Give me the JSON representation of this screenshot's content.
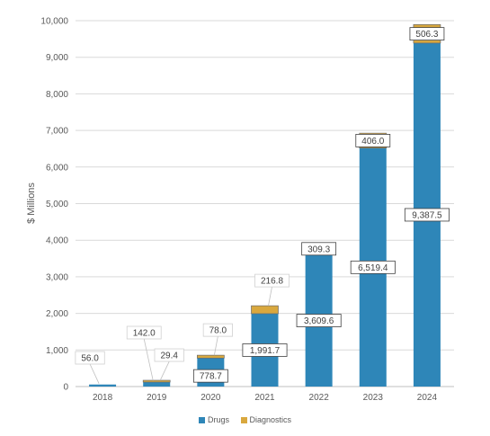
{
  "chart_data": {
    "type": "bar",
    "stacked": true,
    "categories": [
      "2018",
      "2019",
      "2020",
      "2021",
      "2022",
      "2023",
      "2024"
    ],
    "series": [
      {
        "name": "Drugs",
        "color": "#2e86b8",
        "values": [
          56.0,
          142.0,
          778.7,
          1991.7,
          3609.6,
          6519.4,
          9387.5
        ],
        "labels": [
          "56.0",
          "142.0",
          "778.7",
          "1,991.7",
          "3,609.6",
          "6,519.4",
          "9,387.5"
        ]
      },
      {
        "name": "Diagnostics",
        "color": "#d9a83e",
        "values": [
          0,
          29.4,
          78.0,
          216.8,
          309.3,
          406.0,
          506.3
        ],
        "labels": [
          "",
          "29.4",
          "78.0",
          "216.8",
          "309.3",
          "406.0",
          "506.3"
        ]
      }
    ],
    "ylabel": "$ Millions",
    "xlabel": "",
    "ylim": [
      0,
      10000
    ],
    "yticks": [
      "0",
      "1,000",
      "2,000",
      "3,000",
      "4,000",
      "5,000",
      "6,000",
      "7,000",
      "8,000",
      "9,000",
      "10,000"
    ],
    "grid": true,
    "legend_position": "bottom"
  }
}
